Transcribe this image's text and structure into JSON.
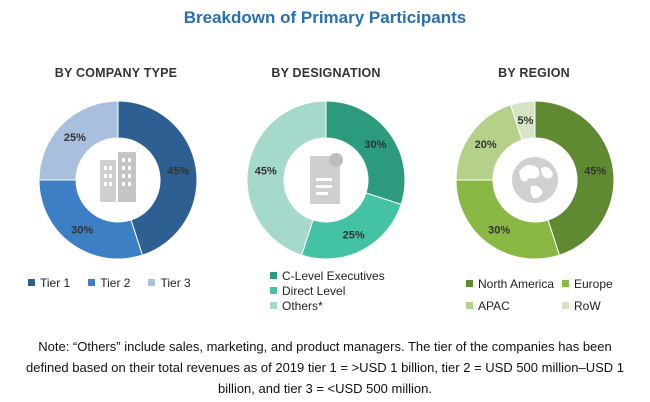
{
  "title": "Breakdown of Primary Participants",
  "chart_data": [
    {
      "type": "pie",
      "title": "BY COMPANY TYPE",
      "categories": [
        "Tier 1",
        "Tier 2",
        "Tier 3"
      ],
      "values": [
        45,
        30,
        25
      ],
      "labels": [
        "45%",
        "30%",
        "25%"
      ],
      "colors": [
        "#2e5f93",
        "#3d7fc4",
        "#a8bfdd"
      ],
      "legend_position": "bottom",
      "center_icon": "buildings-icon"
    },
    {
      "type": "pie",
      "title": "BY DESIGNATION",
      "categories": [
        "C-Level Executives",
        "Direct Level",
        "Others*"
      ],
      "values": [
        30,
        25,
        45
      ],
      "labels": [
        "30%",
        "25%",
        "45%"
      ],
      "colors": [
        "#2c9b7d",
        "#43c3a3",
        "#a5d9cb"
      ],
      "legend_position": "bottom",
      "center_icon": "document-icon"
    },
    {
      "type": "pie",
      "title": "BY REGION",
      "categories": [
        "North America",
        "Europe",
        "APAC",
        "RoW"
      ],
      "values": [
        45,
        30,
        20,
        5
      ],
      "labels": [
        "45%",
        "30%",
        "20%",
        "5%"
      ],
      "colors": [
        "#5f8a32",
        "#8ab845",
        "#b5d08a",
        "#d7e4c4"
      ],
      "legend_position": "bottom",
      "center_icon": "globe-icon"
    }
  ],
  "note": "Note: “Others” include sales, marketing, and product managers. The tier of the companies has been defined based on their total revenues as of 2019 tier 1 = >USD 1 billion, tier 2 = USD 500 million–USD 1 billion, and tier 3 = <USD 500 million."
}
